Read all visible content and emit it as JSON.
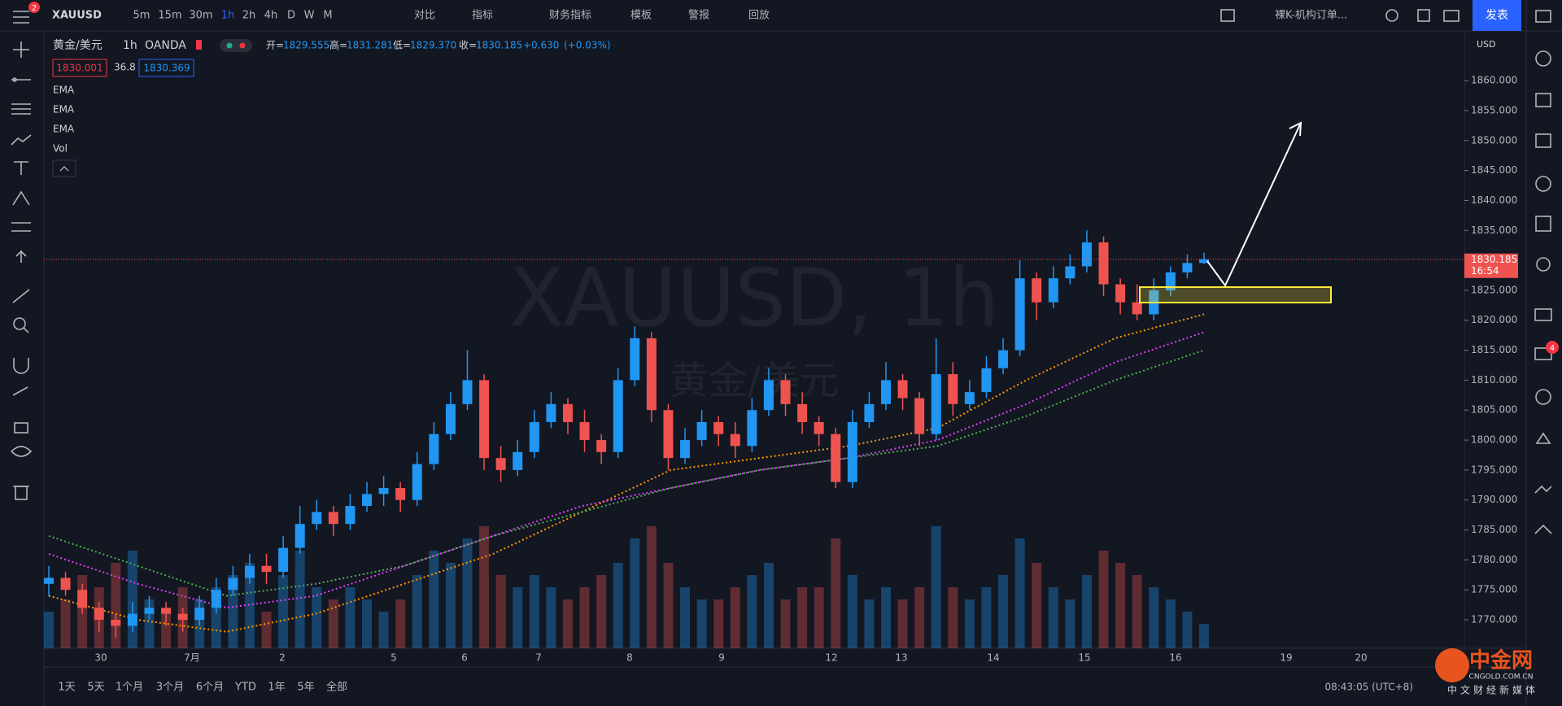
{
  "toolbar": {
    "symbol": "XAUUSD",
    "notification_count": "2",
    "intervals": [
      "5m",
      "15m",
      "30m",
      "1h",
      "2h",
      "4h",
      "D",
      "W",
      "M"
    ],
    "buttons": [
      "对比",
      "指标",
      "财务指标",
      "模板",
      "警报",
      "回放"
    ],
    "layout_name": "裸K-机构订单...",
    "publish": "发表"
  },
  "legend": {
    "symbol": "黄金/美元",
    "interval": "1h",
    "source": "OANDA",
    "open_label": "开=",
    "open": "1829.555",
    "high_label": "高=",
    "high": "1831.281",
    "low_label": "低=",
    "low": "1829.370",
    "close_label": "收=",
    "close": "1830.185",
    "change": "+0.630",
    "change_pct": "(+0.03%)",
    "bid": "1830.001",
    "spread": "36.8",
    "ask": "1830.369",
    "indicators": [
      "EMA",
      "EMA",
      "EMA",
      "Vol"
    ]
  },
  "watermark": {
    "title": "XAUUSD, 1h",
    "subtitle": "黄金/美元"
  },
  "chart_data": {
    "type": "candlestick",
    "up_color": "#2196f3",
    "down_color": "#ef5350",
    "candles": [
      [
        1776,
        1779,
        1774,
        1777
      ],
      [
        1777,
        1778,
        1774,
        1775
      ],
      [
        1775,
        1776,
        1771,
        1772
      ],
      [
        1772,
        1773,
        1768,
        1770
      ],
      [
        1770,
        1771,
        1767,
        1769
      ],
      [
        1769,
        1773,
        1768,
        1771
      ],
      [
        1771,
        1774,
        1770,
        1772
      ],
      [
        1772,
        1773,
        1769,
        1771
      ],
      [
        1771,
        1772,
        1768,
        1770
      ],
      [
        1770,
        1774,
        1769,
        1772
      ],
      [
        1772,
        1777,
        1771,
        1775
      ],
      [
        1775,
        1779,
        1774,
        1777
      ],
      [
        1777,
        1781,
        1776,
        1779
      ],
      [
        1779,
        1781,
        1776,
        1778
      ],
      [
        1778,
        1784,
        1777,
        1782
      ],
      [
        1782,
        1789,
        1781,
        1786
      ],
      [
        1786,
        1790,
        1785,
        1788
      ],
      [
        1788,
        1789,
        1784,
        1786
      ],
      [
        1786,
        1791,
        1785,
        1789
      ],
      [
        1789,
        1793,
        1788,
        1791
      ],
      [
        1791,
        1794,
        1789,
        1792
      ],
      [
        1792,
        1793,
        1788,
        1790
      ],
      [
        1790,
        1798,
        1789,
        1796
      ],
      [
        1796,
        1803,
        1795,
        1801
      ],
      [
        1801,
        1808,
        1800,
        1806
      ],
      [
        1806,
        1815,
        1805,
        1810
      ],
      [
        1810,
        1811,
        1795,
        1797
      ],
      [
        1797,
        1799,
        1793,
        1795
      ],
      [
        1795,
        1800,
        1794,
        1798
      ],
      [
        1798,
        1805,
        1797,
        1803
      ],
      [
        1803,
        1808,
        1802,
        1806
      ],
      [
        1806,
        1807,
        1801,
        1803
      ],
      [
        1803,
        1805,
        1798,
        1800
      ],
      [
        1800,
        1801,
        1796,
        1798
      ],
      [
        1798,
        1812,
        1797,
        1810
      ],
      [
        1810,
        1819,
        1809,
        1817
      ],
      [
        1817,
        1818,
        1803,
        1805
      ],
      [
        1805,
        1806,
        1795,
        1797
      ],
      [
        1797,
        1802,
        1796,
        1800
      ],
      [
        1800,
        1805,
        1799,
        1803
      ],
      [
        1803,
        1804,
        1799,
        1801
      ],
      [
        1801,
        1803,
        1797,
        1799
      ],
      [
        1799,
        1807,
        1798,
        1805
      ],
      [
        1805,
        1812,
        1804,
        1810
      ],
      [
        1810,
        1811,
        1804,
        1806
      ],
      [
        1806,
        1808,
        1801,
        1803
      ],
      [
        1803,
        1804,
        1799,
        1801
      ],
      [
        1801,
        1802,
        1792,
        1793
      ],
      [
        1793,
        1805,
        1792,
        1803
      ],
      [
        1803,
        1808,
        1802,
        1806
      ],
      [
        1806,
        1813,
        1805,
        1810
      ],
      [
        1810,
        1811,
        1805,
        1807
      ],
      [
        1807,
        1808,
        1799,
        1801
      ],
      [
        1801,
        1817,
        1800,
        1811
      ],
      [
        1811,
        1813,
        1804,
        1806
      ],
      [
        1806,
        1810,
        1805,
        1808
      ],
      [
        1808,
        1814,
        1807,
        1812
      ],
      [
        1812,
        1817,
        1811,
        1815
      ],
      [
        1815,
        1830,
        1814,
        1827
      ],
      [
        1827,
        1828,
        1820,
        1823
      ],
      [
        1823,
        1829,
        1822,
        1827
      ],
      [
        1827,
        1831,
        1826,
        1829
      ],
      [
        1829,
        1835,
        1828,
        1833
      ],
      [
        1833,
        1834,
        1824,
        1826
      ],
      [
        1826,
        1827,
        1821,
        1823
      ],
      [
        1823,
        1826,
        1820,
        1821
      ],
      [
        1821,
        1827,
        1820,
        1825
      ],
      [
        1825,
        1829,
        1824,
        1828
      ],
      [
        1828,
        1831,
        1827,
        1829.555
      ],
      [
        1829.555,
        1831.281,
        1829.37,
        1830.185
      ]
    ],
    "volumes": [
      3,
      4,
      6,
      5,
      7,
      8,
      4,
      3,
      5,
      4,
      5,
      6,
      7,
      3,
      6,
      8,
      5,
      4,
      5,
      4,
      3,
      4,
      6,
      8,
      7,
      9,
      10,
      6,
      5,
      6,
      5,
      4,
      5,
      6,
      7,
      9,
      10,
      7,
      5,
      4,
      4,
      5,
      6,
      7,
      4,
      5,
      5,
      9,
      6,
      4,
      5,
      4,
      5,
      10,
      5,
      4,
      5,
      6,
      9,
      7,
      5,
      4,
      6,
      8,
      7,
      6,
      5,
      4,
      3,
      2
    ],
    "ema": [
      {
        "color": "#ff9800",
        "values": [
          1774,
          1770,
          1768,
          1771,
          1776,
          1781,
          1788,
          1795,
          1797,
          1799,
          1802,
          1810,
          1817,
          1821
        ]
      },
      {
        "color": "#e040fb",
        "values": [
          1781,
          1776,
          1772,
          1774,
          1779,
          1784,
          1789,
          1792,
          1795,
          1797,
          1800,
          1806,
          1813,
          1818
        ]
      },
      {
        "color": "#4caf50",
        "values": [
          1784,
          1779,
          1774,
          1776,
          1779,
          1784,
          1788,
          1792,
          1795,
          1797,
          1799,
          1804,
          1810,
          1815
        ]
      }
    ],
    "ylim": [
      1765.25,
      1868.3
    ],
    "yticks": [
      {
        "value": 1770,
        "label": "1770.000"
      },
      {
        "value": 1775,
        "label": "1775.000"
      },
      {
        "value": 1780,
        "label": "1780.000"
      },
      {
        "value": 1785,
        "label": "1785.000"
      },
      {
        "value": 1790,
        "label": "1790.000"
      },
      {
        "value": 1795,
        "label": "1795.000"
      },
      {
        "value": 1800,
        "label": "1800.000"
      },
      {
        "value": 1805,
        "label": "1805.000"
      },
      {
        "value": 1810,
        "label": "1810.000"
      },
      {
        "value": 1815,
        "label": "1815.000"
      },
      {
        "value": 1820,
        "label": "1820.000"
      },
      {
        "value": 1825,
        "label": "1825.000"
      },
      {
        "value": 1830,
        "label": "1830.000"
      },
      {
        "value": 1835,
        "label": "1835.000"
      },
      {
        "value": 1840,
        "label": "1840.000"
      },
      {
        "value": 1845,
        "label": "1845.000"
      },
      {
        "value": 1850,
        "label": "1850.000"
      },
      {
        "value": 1855,
        "label": "1855.000"
      },
      {
        "value": 1860,
        "label": "1860.000"
      }
    ],
    "grid": false,
    "currency": "USD",
    "last_price": {
      "value": 1830.185,
      "label": "1830.185"
    },
    "countdown": "16:54",
    "xticks": [
      "30",
      "7月",
      "2",
      "5",
      "6",
      "7",
      "8",
      "9",
      "12",
      "13",
      "14",
      "15",
      "16",
      "19",
      "20"
    ]
  },
  "bottom_bar": {
    "ranges": [
      "1天",
      "5天",
      "1个月",
      "3个月",
      "6个月",
      "YTD",
      "1年",
      "5年",
      "全部"
    ],
    "clock": "08:43:05 (UTC+8)"
  },
  "right_panel": {
    "badge": "4"
  },
  "logo": {
    "name": "中金网",
    "url": "CNGOLD.COM.CN",
    "slogan": "中文财经新媒体"
  }
}
